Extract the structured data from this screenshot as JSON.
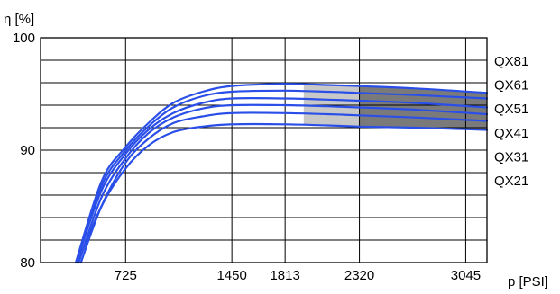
{
  "chart_data": {
    "type": "line",
    "ylabel": "η [%]",
    "xlabel": "p [PSI]",
    "xlim": [
      145,
      3190
    ],
    "ylim": [
      80,
      100
    ],
    "x_ticks": [
      725,
      1450,
      1813,
      2320,
      3045
    ],
    "y_ticks": [
      80,
      90,
      100
    ],
    "y_ticks_labeled": [
      80,
      90,
      100
    ],
    "y_gridlines": [
      82,
      84,
      86,
      88,
      90,
      92,
      94,
      96,
      98
    ],
    "x_gridlines": [
      725,
      1450,
      1813,
      2320,
      3045
    ],
    "grid": true,
    "model_labels": [
      "QX81",
      "QX61",
      "QX51",
      "QX41",
      "QX31",
      "QX21"
    ],
    "line_color": "#2a4fe8",
    "band_light_color": "#c8c8c8",
    "band_dark_color": "#7a7a7a",
    "bands": [
      {
        "shade": "light",
        "x_from": 1940,
        "x_to": 2320
      },
      {
        "shade": "dark",
        "x_from": 2320,
        "x_to": 3190
      }
    ],
    "series": [
      {
        "x": [
          400,
          560,
          720,
          880,
          1050,
          1250,
          1450,
          1813,
          2100,
          2320,
          2700,
          3190
        ],
        "y": [
          80.0,
          85.0,
          88.3,
          90.4,
          91.6,
          92.1,
          92.3,
          92.3,
          92.2,
          92.1,
          92.0,
          91.8
        ]
      },
      {
        "x": [
          420,
          560,
          720,
          880,
          1050,
          1250,
          1450,
          1813,
          2100,
          2320,
          2700,
          3190
        ],
        "y": [
          80.0,
          85.0,
          88.8,
          91.0,
          92.4,
          93.0,
          93.3,
          93.3,
          93.2,
          93.1,
          92.9,
          92.6
        ]
      },
      {
        "x": [
          405,
          560,
          720,
          880,
          1050,
          1250,
          1450,
          1813,
          2100,
          2320,
          2700,
          3190
        ],
        "y": [
          80.0,
          85.8,
          89.2,
          91.5,
          92.9,
          93.7,
          94.0,
          94.0,
          93.9,
          93.8,
          93.6,
          93.2
        ]
      },
      {
        "x": [
          390,
          560,
          720,
          880,
          1050,
          1250,
          1450,
          1813,
          2100,
          2320,
          2700,
          3190
        ],
        "y": [
          80.0,
          86.4,
          89.6,
          91.8,
          93.3,
          94.2,
          94.6,
          94.6,
          94.5,
          94.4,
          94.2,
          93.8
        ]
      },
      {
        "x": [
          395,
          560,
          720,
          880,
          1050,
          1250,
          1450,
          1813,
          2100,
          2320,
          2700,
          3190
        ],
        "y": [
          80.0,
          86.8,
          89.9,
          92.1,
          93.8,
          94.8,
          95.2,
          95.3,
          95.2,
          95.1,
          94.9,
          94.6
        ]
      },
      {
        "x": [
          385,
          560,
          720,
          880,
          1050,
          1250,
          1450,
          1813,
          2100,
          2320,
          2700,
          3190
        ],
        "y": [
          80.0,
          87.2,
          90.2,
          92.4,
          94.2,
          95.2,
          95.7,
          95.9,
          95.8,
          95.7,
          95.5,
          95.1
        ]
      }
    ]
  }
}
